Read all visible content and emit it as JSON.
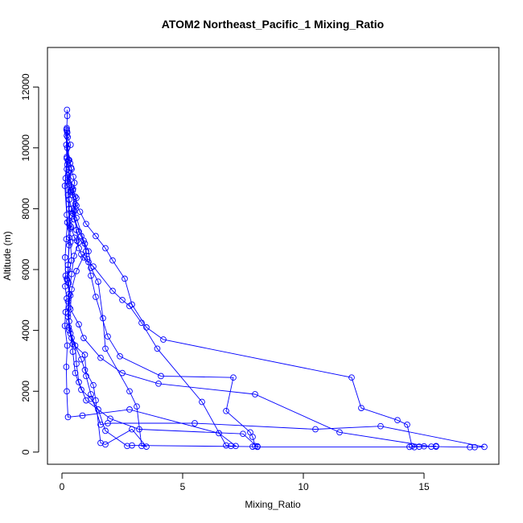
{
  "chart_data": {
    "type": "line",
    "title": "ATOM2 Northeast_Pacific_1 Mixing_Ratio",
    "xlabel": "Mixing_Ratio",
    "ylabel": "Altitude (m)",
    "xlim": [
      -0.6,
      18.1
    ],
    "ylim": [
      -400,
      13300
    ],
    "xticks": [
      0,
      5,
      10,
      15
    ],
    "yticks": [
      0,
      2000,
      4000,
      6000,
      8000,
      10000,
      12000
    ],
    "grid": false,
    "legend": "none",
    "marker": "open-circle",
    "color": "#0000ff",
    "series": [
      {
        "values": [
          [
            0.21,
            11250
          ],
          [
            0.22,
            11050
          ],
          [
            0.2,
            10650
          ],
          [
            0.22,
            10500
          ],
          [
            0.24,
            10350
          ],
          [
            0.36,
            10100
          ],
          [
            0.2,
            9700
          ],
          [
            0.27,
            9600
          ],
          [
            0.34,
            9500
          ],
          [
            0.38,
            9350
          ],
          [
            0.47,
            9050
          ],
          [
            0.52,
            8850
          ],
          [
            0.46,
            8650
          ],
          [
            0.37,
            8600
          ],
          [
            0.42,
            8450
          ],
          [
            0.55,
            8150
          ],
          [
            0.5,
            7950
          ],
          [
            0.42,
            7750
          ],
          [
            0.3,
            7480
          ],
          [
            0.38,
            7400
          ],
          [
            0.52,
            7050
          ],
          [
            0.62,
            6950
          ],
          [
            0.7,
            6700
          ],
          [
            0.8,
            6500
          ],
          [
            0.9,
            6400
          ],
          [
            1.1,
            6250
          ],
          [
            1.3,
            6100
          ],
          [
            2.1,
            5300
          ],
          [
            2.5,
            5000
          ],
          [
            2.8,
            4800
          ],
          [
            3.3,
            4250
          ],
          [
            3.95,
            3400
          ],
          [
            5.8,
            1650
          ],
          [
            6.8,
            220
          ],
          [
            7.0,
            200
          ],
          [
            7.2,
            200
          ],
          [
            6.5,
            620
          ],
          [
            2.8,
            1400
          ],
          [
            0.85,
            1200
          ],
          [
            0.25,
            1150
          ],
          [
            0.2,
            2000
          ],
          [
            0.18,
            2800
          ],
          [
            0.22,
            3500
          ],
          [
            0.12,
            4150
          ],
          [
            0.15,
            4600
          ],
          [
            0.2,
            5050
          ],
          [
            0.13,
            5450
          ],
          [
            0.15,
            5800
          ],
          [
            0.13,
            6400
          ],
          [
            0.18,
            7000
          ],
          [
            0.22,
            7550
          ],
          [
            0.12,
            8750
          ],
          [
            0.2,
            9650
          ],
          [
            0.18,
            10100
          ],
          [
            0.19,
            10600
          ]
        ]
      },
      {
        "values": [
          [
            0.2,
            10400
          ],
          [
            0.3,
            9600
          ],
          [
            0.4,
            9300
          ],
          [
            0.25,
            8900
          ],
          [
            0.35,
            8550
          ],
          [
            0.55,
            8400
          ],
          [
            0.6,
            8100
          ],
          [
            0.75,
            7900
          ],
          [
            1.0,
            7500
          ],
          [
            1.4,
            7100
          ],
          [
            1.8,
            6700
          ],
          [
            2.1,
            6300
          ],
          [
            2.6,
            5700
          ],
          [
            2.9,
            4850
          ],
          [
            3.5,
            4100
          ],
          [
            4.2,
            3700
          ],
          [
            12.0,
            2450
          ],
          [
            12.4,
            1450
          ],
          [
            13.9,
            1050
          ],
          [
            14.3,
            900
          ],
          [
            14.5,
            200
          ],
          [
            14.8,
            180
          ],
          [
            15.0,
            190
          ],
          [
            15.5,
            180
          ],
          [
            16.9,
            160
          ],
          [
            17.1,
            160
          ],
          [
            17.5,
            170
          ],
          [
            13.2,
            850
          ],
          [
            10.5,
            750
          ],
          [
            5.5,
            950
          ],
          [
            1.9,
            950
          ],
          [
            1.6,
            900
          ],
          [
            1.2,
            1900
          ],
          [
            1.0,
            2500
          ],
          [
            0.95,
            3200
          ],
          [
            0.45,
            3550
          ],
          [
            0.3,
            4000
          ],
          [
            0.25,
            4550
          ],
          [
            0.35,
            5150
          ],
          [
            0.2,
            5700
          ],
          [
            0.25,
            6000
          ],
          [
            0.3,
            7050
          ],
          [
            0.2,
            7800
          ],
          [
            0.15,
            9000
          ],
          [
            0.22,
            9450
          ]
        ]
      },
      {
        "values": [
          [
            0.4,
            8000
          ],
          [
            0.6,
            7700
          ],
          [
            0.9,
            6950
          ],
          [
            1.1,
            6600
          ],
          [
            1.2,
            6050
          ],
          [
            1.5,
            5600
          ],
          [
            1.7,
            4400
          ],
          [
            1.8,
            3400
          ],
          [
            2.8,
            2000
          ],
          [
            3.1,
            1500
          ],
          [
            3.3,
            200
          ],
          [
            3.5,
            180
          ],
          [
            2.9,
            750
          ],
          [
            1.8,
            250
          ],
          [
            1.6,
            300
          ],
          [
            1.4,
            1700
          ],
          [
            1.3,
            2200
          ],
          [
            0.95,
            2700
          ],
          [
            0.8,
            3050
          ],
          [
            0.4,
            3750
          ],
          [
            0.3,
            4300
          ],
          [
            0.25,
            4950
          ],
          [
            0.4,
            5850
          ],
          [
            0.5,
            6450
          ],
          [
            0.7,
            6900
          ],
          [
            0.6,
            7300
          ],
          [
            0.5,
            7900
          ],
          [
            0.45,
            8600
          ],
          [
            0.28,
            9200
          ],
          [
            0.22,
            10000
          ]
        ]
      },
      {
        "values": [
          [
            0.3,
            8300
          ],
          [
            0.45,
            7850
          ],
          [
            0.7,
            7250
          ],
          [
            0.95,
            6850
          ],
          [
            1.05,
            6350
          ],
          [
            1.2,
            5800
          ],
          [
            1.4,
            5100
          ],
          [
            1.9,
            3800
          ],
          [
            2.4,
            3150
          ],
          [
            4.1,
            2500
          ],
          [
            7.1,
            2450
          ],
          [
            6.8,
            1350
          ],
          [
            7.8,
            650
          ],
          [
            7.9,
            500
          ],
          [
            8.0,
            200
          ],
          [
            8.1,
            190
          ],
          [
            7.9,
            180
          ],
          [
            2.9,
            220
          ],
          [
            2.7,
            200
          ],
          [
            1.8,
            700
          ],
          [
            1.5,
            1400
          ],
          [
            1.2,
            1750
          ],
          [
            0.8,
            2050
          ],
          [
            0.55,
            2600
          ],
          [
            0.45,
            3300
          ],
          [
            0.35,
            3900
          ],
          [
            0.25,
            4450
          ],
          [
            0.3,
            5200
          ],
          [
            0.22,
            5650
          ],
          [
            0.4,
            6300
          ],
          [
            0.35,
            6900
          ],
          [
            0.3,
            7600
          ],
          [
            0.25,
            8450
          ],
          [
            0.2,
            9300
          ],
          [
            0.21,
            10550
          ]
        ]
      },
      {
        "values": [
          [
            0.25,
            9100
          ],
          [
            0.4,
            8700
          ],
          [
            0.6,
            8350
          ],
          [
            0.5,
            7650
          ],
          [
            0.8,
            7100
          ],
          [
            1.0,
            6600
          ],
          [
            0.6,
            5950
          ],
          [
            0.4,
            5350
          ],
          [
            0.35,
            4700
          ],
          [
            0.7,
            4200
          ],
          [
            0.9,
            3750
          ],
          [
            1.6,
            3100
          ],
          [
            2.5,
            2600
          ],
          [
            4.0,
            2250
          ],
          [
            8.0,
            1900
          ],
          [
            11.5,
            650
          ],
          [
            15.3,
            180
          ],
          [
            15.5,
            200
          ],
          [
            14.6,
            160
          ],
          [
            14.4,
            170
          ],
          [
            8.1,
            170
          ],
          [
            7.5,
            600
          ],
          [
            3.2,
            750
          ],
          [
            2.0,
            1100
          ],
          [
            1.0,
            1700
          ],
          [
            0.7,
            2300
          ],
          [
            0.6,
            2900
          ],
          [
            0.55,
            3500
          ],
          [
            0.28,
            4100
          ],
          [
            0.3,
            4750
          ],
          [
            0.28,
            5550
          ],
          [
            0.25,
            6150
          ],
          [
            0.3,
            6800
          ],
          [
            0.35,
            7350
          ],
          [
            0.3,
            8000
          ],
          [
            0.3,
            8800
          ],
          [
            0.25,
            9550
          ],
          [
            0.19,
            10600
          ]
        ]
      }
    ]
  }
}
